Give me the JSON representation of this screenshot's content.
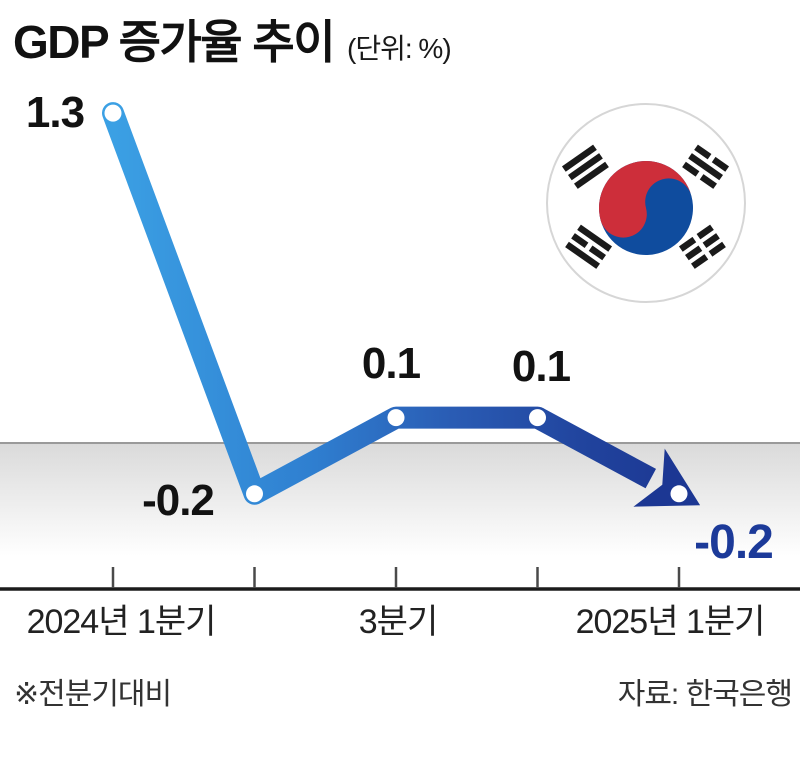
{
  "title": {
    "text": "GDP 증가율 추이",
    "unit": "(단위: %)"
  },
  "chart_data": {
    "type": "line",
    "title": "GDP 증가율 추이",
    "unit": "%",
    "categories": [
      "2024년 1분기",
      "",
      "3분기",
      "",
      "2025년 1분기"
    ],
    "values": [
      1.3,
      -0.2,
      0.1,
      0.1,
      -0.2
    ],
    "point_labels": [
      "1.3",
      "-0.2",
      "0.1",
      "0.1",
      "-0.2"
    ],
    "baseline": 0,
    "xlabel": "",
    "ylabel": "",
    "legend": false,
    "grid": false,
    "annotations": {
      "trend_arrow": "down-right at last point"
    },
    "colors": {
      "line_start": "#3BA0E4",
      "line_mid": "#2A5CB4",
      "line_end": "#1C3793",
      "highlight_label": "#1C3A99",
      "zero_line": "#9a9a9a",
      "axis": "#1b1b1b"
    }
  },
  "x_axis": {
    "labels": [
      "2024년 1분기",
      "3분기",
      "2025년 1분기"
    ]
  },
  "footnote": "※전분기대비",
  "source": "자료: 한국은행",
  "flag": {
    "name": "south-korea-flag",
    "red": "#CD2E3A",
    "blue": "#0F4C9E"
  }
}
